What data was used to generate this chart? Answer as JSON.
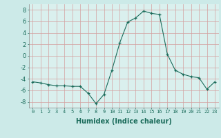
{
  "x": [
    0,
    1,
    2,
    3,
    4,
    5,
    6,
    7,
    8,
    9,
    10,
    11,
    12,
    13,
    14,
    15,
    16,
    17,
    18,
    19,
    20,
    21,
    22,
    23
  ],
  "y": [
    -4.5,
    -4.7,
    -5.0,
    -5.2,
    -5.2,
    -5.3,
    -5.3,
    -6.5,
    -8.3,
    -6.7,
    -2.5,
    2.3,
    5.9,
    6.6,
    7.8,
    7.4,
    7.2,
    0.3,
    -2.5,
    -3.2,
    -3.6,
    -3.8,
    -5.8,
    -4.5
  ],
  "xlabel": "Humidex (Indice chaleur)",
  "xlim": [
    -0.5,
    23.5
  ],
  "ylim": [
    -9,
    9
  ],
  "yticks": [
    -8,
    -6,
    -4,
    -2,
    0,
    2,
    4,
    6,
    8
  ],
  "xticks": [
    0,
    1,
    2,
    3,
    4,
    5,
    6,
    7,
    8,
    9,
    10,
    11,
    12,
    13,
    14,
    15,
    16,
    17,
    18,
    19,
    20,
    21,
    22,
    23
  ],
  "line_color": "#1a6b5a",
  "marker": "+",
  "bg_color": "#cceae8",
  "grid_color": "#d4a0a0",
  "plot_bg": "#daf0ee",
  "tick_color": "#1a6b5a",
  "xlabel_fontsize": 7,
  "ytick_fontsize": 6,
  "xtick_fontsize": 5
}
